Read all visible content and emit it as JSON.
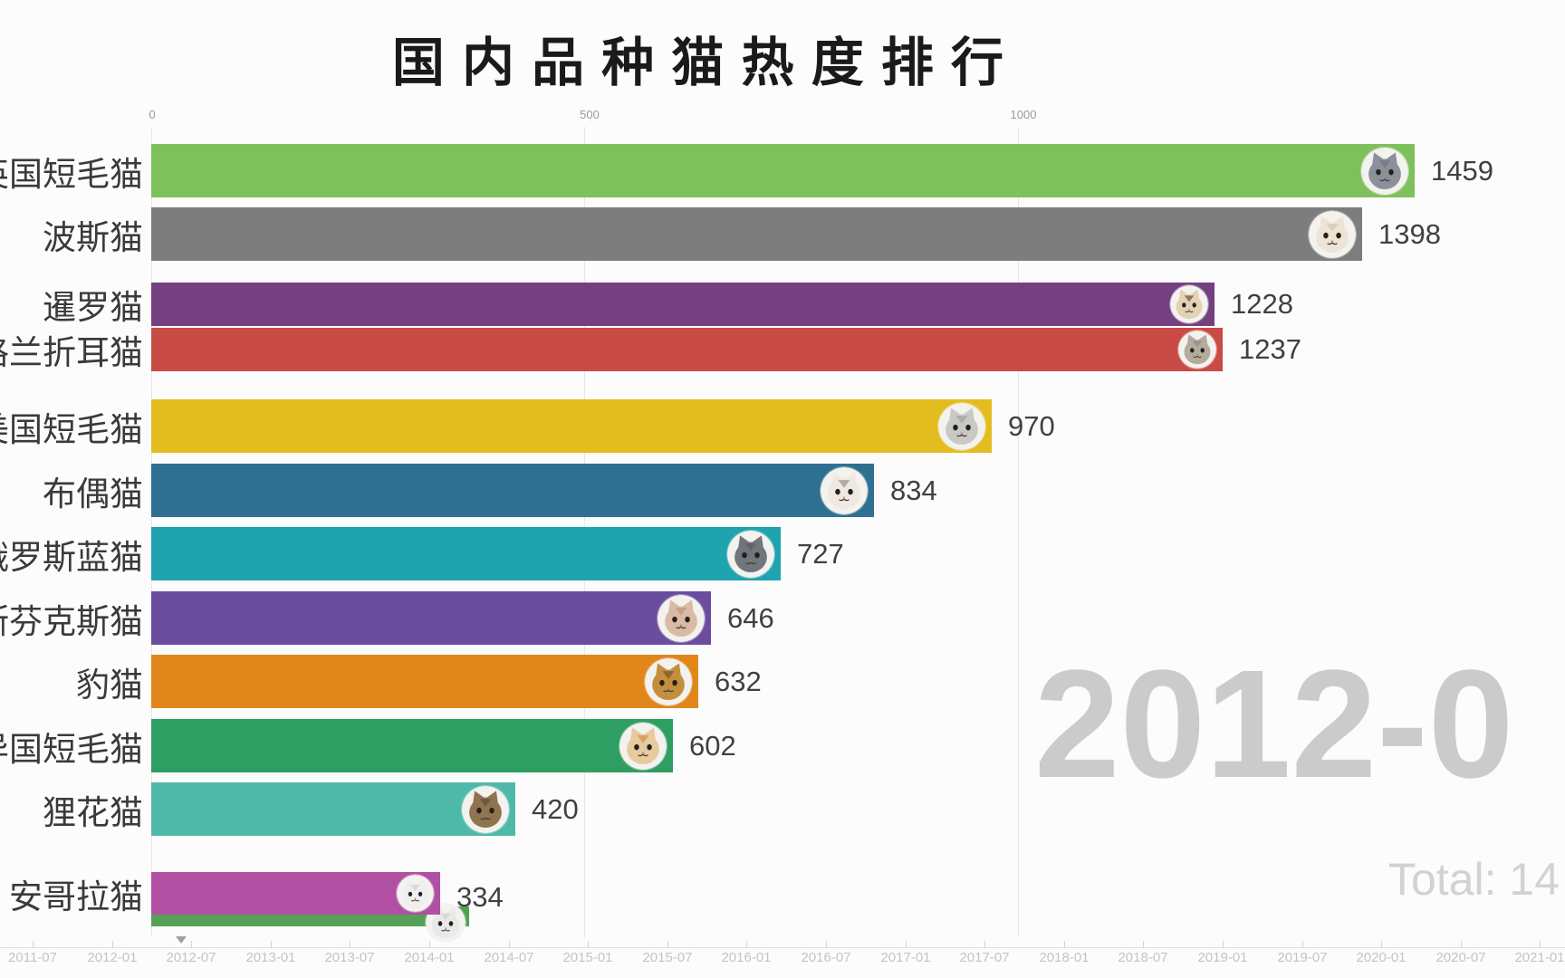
{
  "chart_data": {
    "type": "bar",
    "orientation": "horizontal",
    "title": "国内品种猫热度排行",
    "categories": [
      "英国短毛猫",
      "波斯猫",
      "暹罗猫",
      "苏格兰折耳猫",
      "美国短毛猫",
      "布偶猫",
      "俄罗斯蓝猫",
      "斯芬克斯猫",
      "豹猫",
      "异国短毛猫",
      "狸花猫",
      "安哥拉猫"
    ],
    "values": [
      1459,
      1398,
      1228,
      1237,
      970,
      834,
      727,
      646,
      632,
      602,
      420,
      334
    ],
    "value_axis_ticks": [
      0,
      500,
      1000
    ],
    "timeline_ticks": [
      "2011-07",
      "2012-01",
      "2012-07",
      "2013-01",
      "2013-07",
      "2014-01",
      "2014-07",
      "2015-01",
      "2015-07",
      "2016-01",
      "2016-07",
      "2017-01",
      "2017-07",
      "2018-01",
      "2018-07",
      "2019-01",
      "2019-07",
      "2020-01",
      "2020-07",
      "2021-01"
    ],
    "current_frame_date": "2012-0",
    "total_text": "Total: 14",
    "legend": "none",
    "grid": "vertical-light"
  },
  "title": "国内品种猫热度排行",
  "value_axis": {
    "ticks": [
      {
        "label": "0"
      },
      {
        "label": "500"
      },
      {
        "label": "1000"
      }
    ]
  },
  "bars": [
    {
      "label": "英国短毛猫",
      "value": 1459,
      "color": "#7ec05c",
      "icon": "british-shorthair-cat-avatar",
      "fur": "#8b909a",
      "fur2": "#6d727c"
    },
    {
      "label": "波斯猫",
      "value": 1398,
      "color": "#7d7d7d",
      "icon": "persian-cat-avatar",
      "fur": "#ece4d4",
      "fur2": "#cbbfa6"
    },
    {
      "label": "暹罗猫",
      "value": 1228,
      "color": "#74407f",
      "icon": "siamese-cat-avatar",
      "fur": "#e3d2b4",
      "fur2": "#50382a"
    },
    {
      "label": "苏格兰折耳猫",
      "value": 1237,
      "color": "#c84b45",
      "icon": "scottish-fold-cat-avatar",
      "fur": "#b3ab9c",
      "fur2": "#8c8374"
    },
    {
      "label": "美国短毛猫",
      "value": 970,
      "color": "#e3bc20",
      "icon": "american-shorthair-cat-avatar",
      "fur": "#c9c9c4",
      "fur2": "#9b9b94"
    },
    {
      "label": "布偶猫",
      "value": 834,
      "color": "#2f7090",
      "icon": "ragdoll-cat-avatar",
      "fur": "#efe9e2",
      "fur2": "#8b8078"
    },
    {
      "label": "俄罗斯蓝猫",
      "value": 727,
      "color": "#1fa3ae",
      "icon": "russian-blue-cat-avatar",
      "fur": "#70767c",
      "fur2": "#565c62"
    },
    {
      "label": "斯芬克斯猫",
      "value": 646,
      "color": "#6a4d9f",
      "icon": "sphynx-cat-avatar",
      "fur": "#d9baa5",
      "fur2": "#b2907a"
    },
    {
      "label": "豹猫",
      "value": 632,
      "color": "#e0861b",
      "icon": "bengal-cat-avatar",
      "fur": "#c38f3e",
      "fur2": "#6b4a1e"
    },
    {
      "label": "异国短毛猫",
      "value": 602,
      "color": "#2e9e62",
      "icon": "exotic-shorthair-cat-avatar",
      "fur": "#e8ca9f",
      "fur2": "#d2823c"
    },
    {
      "label": "狸花猫",
      "value": 420,
      "color": "#4fb9a9",
      "icon": "li-hua-cat-avatar",
      "fur": "#8f744f",
      "fur2": "#5d4a30"
    },
    {
      "label": "安哥拉猫",
      "value": 334,
      "color": "#b14fa3",
      "icon": "angora-cat-avatar",
      "fur": "#efefef",
      "fur2": "#c9c9c9"
    }
  ],
  "emerging_bar": {
    "color": "#54a155",
    "fur": "#e9e9e9",
    "fur2": "#cccccc"
  },
  "overlay": {
    "date": "2012-0",
    "total": "Total: 14"
  },
  "timeline": {
    "labels": [
      "2011-07",
      "2012-01",
      "2012-07",
      "2013-01",
      "2013-07",
      "2014-01",
      "2014-07",
      "2015-01",
      "2015-07",
      "2016-01",
      "2016-07",
      "2017-01",
      "2017-07",
      "2018-01",
      "2018-07",
      "2019-01",
      "2019-07",
      "2020-01",
      "2020-07",
      "2021-01"
    ]
  }
}
